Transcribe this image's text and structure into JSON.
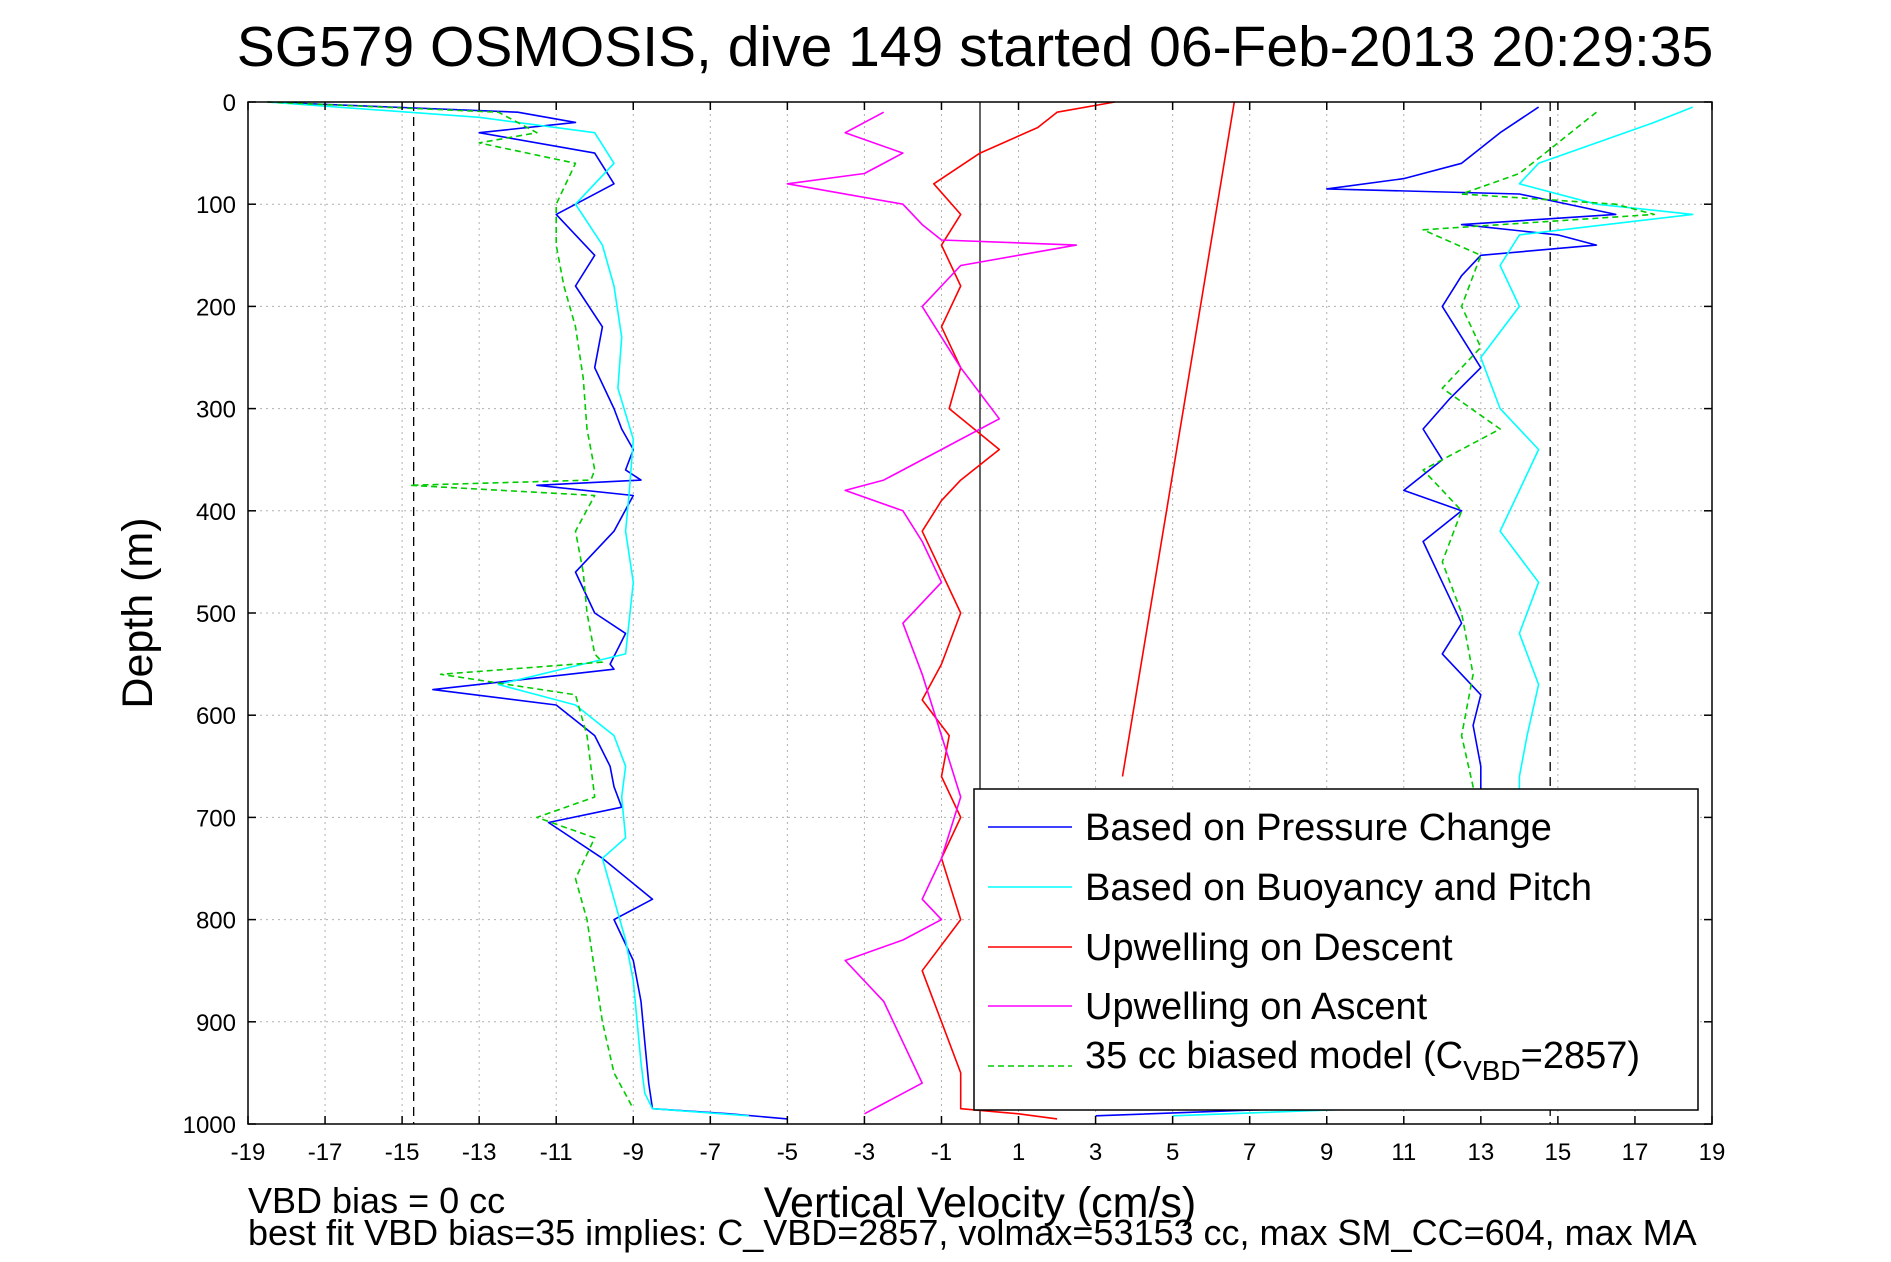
{
  "chart_data": {
    "type": "line",
    "title": "SG579 OSMOSIS, dive 149 started 06-Feb-2013 20:29:35",
    "xlabel": "Vertical Velocity (cm/s)",
    "ylabel": "Depth (m)",
    "xlim": [
      -19,
      19
    ],
    "ylim": [
      0,
      1000
    ],
    "y_reversed": true,
    "grid": true,
    "x_ticks": [
      "-19",
      "-17",
      "-15",
      "-13",
      "-11",
      "-9",
      "-7",
      "-5",
      "-3",
      "-1",
      "1",
      "3",
      "5",
      "7",
      "9",
      "11",
      "13",
      "15",
      "17",
      "19"
    ],
    "y_ticks": [
      "0",
      "100",
      "200",
      "300",
      "400",
      "500",
      "600",
      "700",
      "800",
      "900",
      "1000"
    ],
    "reference_lines": [
      {
        "x": -14.7,
        "style": "dashed"
      },
      {
        "x": 14.8,
        "style": "dashed"
      },
      {
        "x": 0,
        "style": "solid"
      }
    ],
    "legend_position": "bottom-right",
    "series": [
      {
        "name": "Based on Pressure Change",
        "color": "#0000ff",
        "style": "solid",
        "branches": [
          {
            "x": [
              -18.5,
              -12,
              -10.5,
              -13,
              -10,
              -9.5,
              -11,
              -10,
              -10.5,
              -9.8,
              -10,
              -9.5,
              -9.3,
              -9.0,
              -9.2,
              -8.8,
              -11.5,
              -9.0,
              -9.5,
              -10.5,
              -10,
              -9.2,
              -9.6,
              -9.5,
              -14.2,
              -11,
              -10,
              -9.6,
              -9.5,
              -9.3,
              -11.2,
              -9.8,
              -8.5,
              -9.5,
              -9.0,
              -8.8,
              -8.7,
              -8.6,
              -8.5,
              -6.5,
              -5.0
            ],
            "y": [
              0,
              10,
              20,
              30,
              50,
              80,
              110,
              150,
              180,
              220,
              260,
              300,
              320,
              340,
              360,
              370,
              375,
              385,
              420,
              460,
              500,
              520,
              550,
              555,
              575,
              590,
              620,
              650,
              670,
              690,
              705,
              740,
              780,
              800,
              840,
              880,
              920,
              960,
              985,
              990,
              995
            ]
          },
          {
            "x": [
              14.5,
              13.5,
              12.5,
              11.0,
              9.0,
              14.0,
              16.5,
              12.5,
              15.0,
              16.0,
              13.0,
              12.5,
              12.0,
              12.5,
              13.0,
              12.2,
              11.5,
              12.0,
              11.0,
              12.5,
              11.5,
              12.0,
              12.5,
              12.0,
              13.0,
              12.8,
              13.0,
              13.0,
              8.0,
              3.0
            ],
            "y": [
              5,
              30,
              60,
              75,
              85,
              90,
              110,
              120,
              130,
              140,
              150,
              170,
              200,
              230,
              260,
              290,
              320,
              350,
              380,
              400,
              430,
              470,
              510,
              540,
              580,
              610,
              650,
              680,
              985,
              992
            ]
          }
        ]
      },
      {
        "name": "Based on Buoyancy and Pitch",
        "color": "#00ffff",
        "style": "solid",
        "branches": [
          {
            "x": [
              -18.5,
              -13,
              -10,
              -9.5,
              -10.5,
              -9.8,
              -9.5,
              -9.3,
              -9.4,
              -9.0,
              -9.1,
              -9.2,
              -9.0,
              -9.2,
              -12.5,
              -10.5,
              -9.5,
              -9.2,
              -9.3,
              -9.2,
              -9.8,
              -9.5,
              -9.2,
              -9.0,
              -8.9,
              -8.8,
              -8.7,
              -8.5,
              -6.0
            ],
            "y": [
              0,
              15,
              30,
              60,
              100,
              140,
              180,
              230,
              280,
              330,
              380,
              420,
              470,
              540,
              570,
              590,
              620,
              650,
              680,
              720,
              740,
              780,
              820,
              860,
              900,
              940,
              970,
              985,
              992
            ]
          },
          {
            "x": [
              18.5,
              17.5,
              16.0,
              14.5,
              14.0,
              16.0,
              18.5,
              14.0,
              13.5,
              14.0,
              13.0,
              13.5,
              14.5,
              14.0,
              13.5,
              14.5,
              14.0,
              14.5,
              14.2,
              14.0,
              14.0,
              10.0,
              5.0
            ],
            "y": [
              5,
              20,
              40,
              60,
              80,
              100,
              110,
              130,
              160,
              200,
              250,
              300,
              340,
              380,
              420,
              470,
              520,
              570,
              620,
              660,
              680,
              985,
              992
            ]
          }
        ]
      },
      {
        "name": "Upwelling on Descent",
        "color": "#ff0000",
        "style": "solid",
        "branches": [
          {
            "x": [
              3.5,
              2.0,
              1.5,
              0,
              -1.2,
              -0.5,
              -1.0,
              -0.5,
              -1.0,
              -0.5,
              -0.8,
              0.5,
              -0.5,
              -1.0,
              -1.5,
              -1.0,
              -0.5,
              -1.0,
              -1.5,
              -0.8,
              -1.0,
              -0.5,
              -1.0,
              -0.5,
              -1.5,
              -1.0,
              -0.5,
              -0.5,
              1.0,
              2.0
            ],
            "y": [
              0,
              10,
              25,
              50,
              80,
              110,
              140,
              180,
              220,
              260,
              300,
              340,
              370,
              390,
              420,
              460,
              500,
              550,
              585,
              620,
              660,
              700,
              740,
              800,
              850,
              900,
              950,
              985,
              990,
              995
            ]
          },
          {
            "x": [
              6.6,
              3.7
            ],
            "y": [
              0,
              660
            ]
          }
        ]
      },
      {
        "name": "Upwelling on Ascent",
        "color": "#ff00ff",
        "style": "solid",
        "branches": [
          {
            "x": [
              -2.5,
              -3.5,
              -2.0,
              -3.0,
              -5.0,
              -2.0,
              -1.5,
              -1.0,
              2.5,
              -0.5,
              -1.5,
              -0.5,
              0.5,
              -1.0,
              -2.5,
              -3.5,
              -2.0,
              -1.5,
              -1.0,
              -2.0,
              -1.5,
              -1.0,
              -0.5,
              -1.0,
              -1.5,
              -1.0,
              -2.0,
              -3.5,
              -2.5,
              -2.0,
              -1.5,
              -3.0
            ],
            "y": [
              10,
              30,
              50,
              70,
              80,
              100,
              120,
              135,
              140,
              160,
              200,
              260,
              310,
              340,
              370,
              380,
              400,
              430,
              470,
              510,
              560,
              620,
              680,
              740,
              780,
              800,
              820,
              840,
              880,
              920,
              960,
              990
            ]
          }
        ]
      },
      {
        "name": "35 cc biased model (CVBD=2857)",
        "color": "#00cc00",
        "style": "dashed",
        "branches": [
          {
            "x": [
              -18.5,
              -12.5,
              -11.5,
              -13.0,
              -10.5,
              -11.0,
              -11.0,
              -10.8,
              -10.5,
              -10.3,
              -10.2,
              -10.0,
              -10.1,
              -14.8,
              -10.0,
              -10.5,
              -10.3,
              -10.2,
              -10.0,
              -9.8,
              -14.0,
              -10.5,
              -10.2,
              -10.0,
              -11.5,
              -10.0,
              -10.5,
              -10.2,
              -10.0,
              -9.8,
              -9.5,
              -9.0
            ],
            "y": [
              0,
              10,
              30,
              40,
              60,
              100,
              140,
              180,
              220,
              270,
              320,
              360,
              370,
              375,
              385,
              420,
              460,
              500,
              540,
              548,
              560,
              580,
              620,
              680,
              700,
              720,
              760,
              800,
              850,
              900,
              950,
              985
            ]
          },
          {
            "x": [
              16.0,
              15.0,
              14.0,
              12.5,
              16.5,
              17.5,
              11.5,
              13.0,
              12.5,
              13.0,
              12.0,
              13.5,
              11.5,
              12.5,
              12.0,
              12.5,
              12.8,
              12.5,
              12.8,
              12.5
            ],
            "y": [
              10,
              40,
              70,
              90,
              100,
              110,
              125,
              150,
              200,
              240,
              280,
              320,
              360,
              400,
              450,
              500,
              560,
              620,
              670,
              690
            ]
          }
        ]
      }
    ],
    "footer": {
      "line1": "VBD bias = 0 cc",
      "line2": "best fit VBD bias=35 implies: C_VBD=2857, volmax=53153 cc, max SM_CC=604, max MA"
    }
  }
}
